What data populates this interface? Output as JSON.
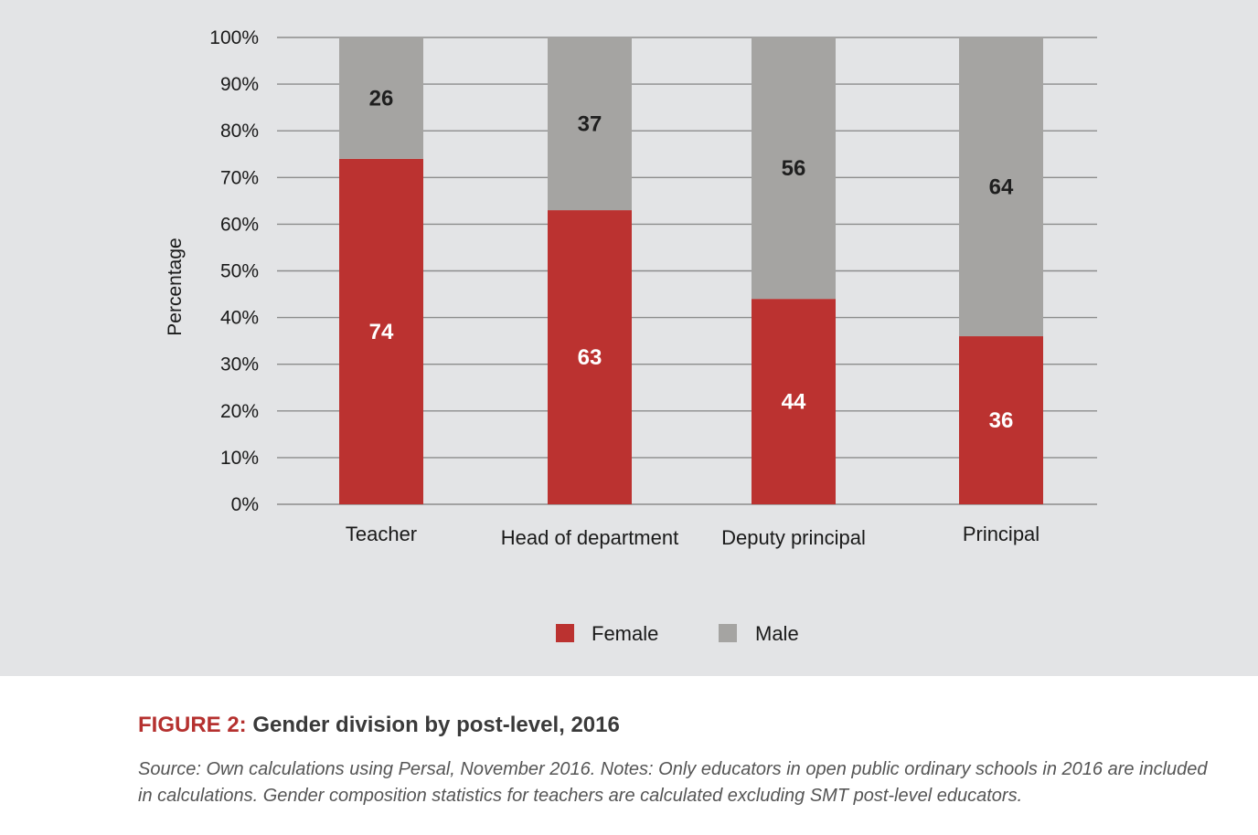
{
  "chart_data": {
    "type": "bar",
    "stacked": true,
    "categories": [
      "Teacher",
      "Head of department",
      "Deputy principal",
      "Principal"
    ],
    "series": [
      {
        "name": "Female",
        "values": [
          74,
          63,
          44,
          36
        ],
        "color": "#bb3230"
      },
      {
        "name": "Male",
        "values": [
          26,
          37,
          56,
          64
        ],
        "color": "#a5a4a2"
      }
    ],
    "ylabel": "Percentage",
    "xlabel": "",
    "ylim": [
      0,
      100
    ],
    "yticks": [
      "0%",
      "10%",
      "20%",
      "30%",
      "40%",
      "50%",
      "60%",
      "70%",
      "80%",
      "90%",
      "100%"
    ],
    "grid": true,
    "legend_position": "bottom-center",
    "background": "#e3e4e6"
  },
  "figure": {
    "number": "FIGURE 2:",
    "title": "Gender division by post-level, 2016",
    "source": "Source: Own calculations using Persal, November 2016. Notes: Only educators in open public ordinary schools in 2016 are included in calculations. Gender composition statistics for teachers are calculated excluding SMT post-level educators."
  }
}
